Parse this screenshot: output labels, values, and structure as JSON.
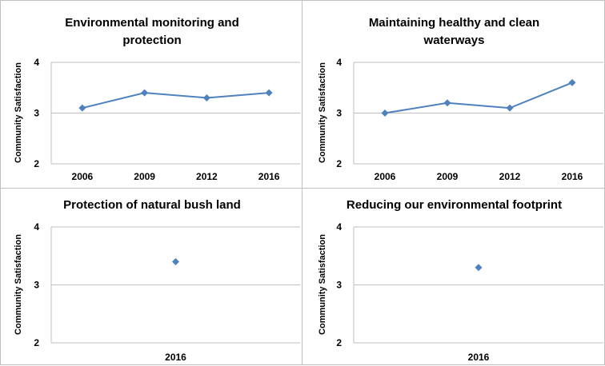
{
  "chart_data": [
    {
      "type": "line",
      "title": [
        "Environmental monitoring and",
        "protection"
      ],
      "ylabel": "Community Satisfaction",
      "categories": [
        "2006",
        "2009",
        "2012",
        "2016"
      ],
      "values": [
        3.1,
        3.4,
        3.3,
        3.4
      ],
      "ylim": [
        2,
        4
      ],
      "yticks": [
        "2",
        "3",
        "4"
      ],
      "grid": true,
      "color": "#4f81bd"
    },
    {
      "type": "line",
      "title": [
        "Maintaining healthy and  clean",
        "waterways"
      ],
      "ylabel": "Community Satisfaction",
      "categories": [
        "2006",
        "2009",
        "2012",
        "2016"
      ],
      "values": [
        3.0,
        3.2,
        3.1,
        3.6
      ],
      "ylim": [
        2,
        4
      ],
      "yticks": [
        "2",
        "3",
        "4"
      ],
      "grid": true,
      "color": "#4f81bd"
    },
    {
      "type": "scatter",
      "title": [
        "Protection of natural bush land"
      ],
      "ylabel": "Community Satisfaction",
      "categories": [
        "2016"
      ],
      "values": [
        3.4
      ],
      "ylim": [
        2,
        4
      ],
      "yticks": [
        "2",
        "3",
        "4"
      ],
      "grid": true,
      "color": "#4f81bd"
    },
    {
      "type": "scatter",
      "title": [
        "Reducing our environmental footprint"
      ],
      "ylabel": "Community Satisfaction",
      "categories": [
        "2016"
      ],
      "values": [
        3.3
      ],
      "ylim": [
        2,
        4
      ],
      "yticks": [
        "2",
        "3",
        "4"
      ],
      "grid": true,
      "color": "#4f81bd"
    }
  ]
}
